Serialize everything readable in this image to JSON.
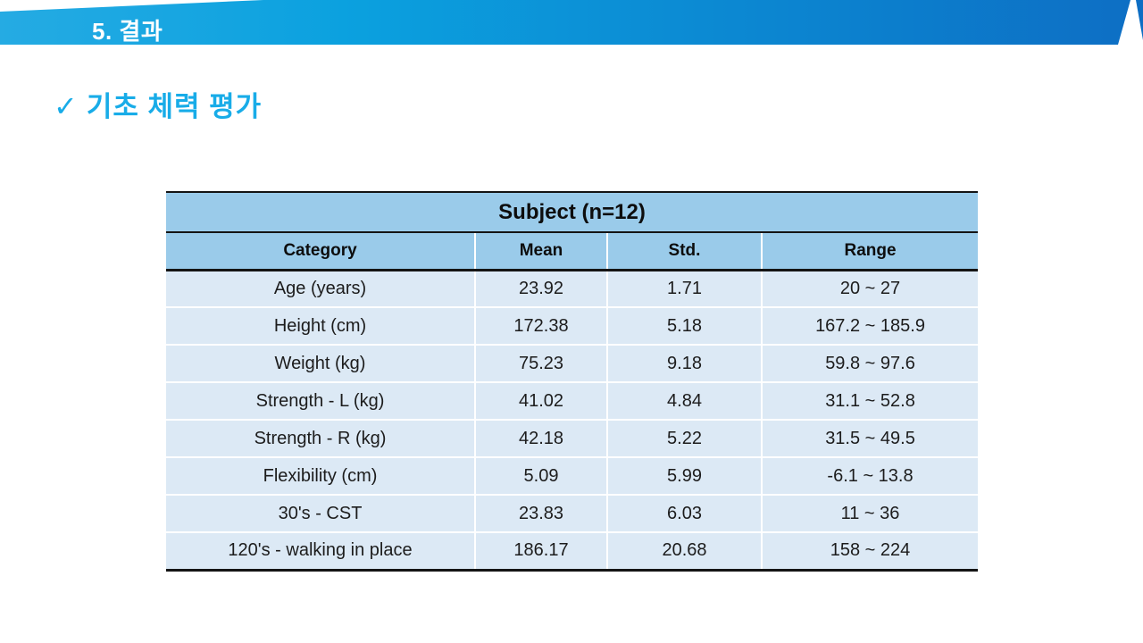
{
  "slide": {
    "header": {
      "title": "5. 결과"
    },
    "subtitle": {
      "check_icon": "✓",
      "text": "기초 체력 평가"
    },
    "table": {
      "title": "Subject (n=12)",
      "columns": [
        "Category",
        "Mean",
        "Std.",
        "Range"
      ],
      "rows": [
        {
          "category": "Age (years)",
          "mean": "23.92",
          "std": "1.71",
          "range": "20 ~ 27"
        },
        {
          "category": "Height (cm)",
          "mean": "172.38",
          "std": "5.18",
          "range": "167.2 ~ 185.9"
        },
        {
          "category": "Weight (kg)",
          "mean": "75.23",
          "std": "9.18",
          "range": "59.8 ~ 97.6"
        },
        {
          "category": "Strength - L (kg)",
          "mean": "41.02",
          "std": "4.84",
          "range": "31.1 ~ 52.8"
        },
        {
          "category": "Strength - R (kg)",
          "mean": "42.18",
          "std": "5.22",
          "range": "31.5 ~ 49.5"
        },
        {
          "category": "Flexibility (cm)",
          "mean": "5.09",
          "std": "5.99",
          "range": "-6.1 ~ 13.8"
        },
        {
          "category": "30's - CST",
          "mean": "23.83",
          "std": "6.03",
          "range": "11 ~ 36"
        },
        {
          "category": "120's - walking in place",
          "mean": "186.17",
          "std": "20.68",
          "range": "158 ~ 224"
        }
      ]
    },
    "colors": {
      "banner_gradient_left": "#25abe3",
      "banner_gradient_right": "#0d6ec4",
      "banner_text": "#ffffff",
      "subtitle_accent": "#18ace8",
      "table_header_bg": "#9acbea",
      "table_row_bg": "#dce9f5",
      "table_border_dark": "#141414",
      "table_separator": "#ffffff"
    }
  }
}
